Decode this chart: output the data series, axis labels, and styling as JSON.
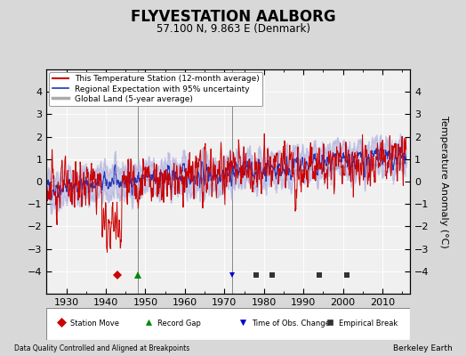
{
  "title": "FLYVESTATION AALBORG",
  "subtitle": "57.100 N, 9.863 E (Denmark)",
  "ylabel": "Temperature Anomaly (°C)",
  "footer_left": "Data Quality Controlled and Aligned at Breakpoints",
  "footer_right": "Berkeley Earth",
  "xlim": [
    1925,
    2017
  ],
  "ylim": [
    -5,
    5
  ],
  "yticks": [
    -4,
    -3,
    -2,
    -1,
    0,
    1,
    2,
    3,
    4
  ],
  "xticks": [
    1930,
    1940,
    1950,
    1960,
    1970,
    1980,
    1990,
    2000,
    2010
  ],
  "bg_color": "#d8d8d8",
  "plot_bg_color": "#f0f0f0",
  "red_color": "#cc0000",
  "blue_color": "#2233bb",
  "blue_fill_color": "#aaaadd",
  "gray_color": "#aaaaaa",
  "legend_items": [
    {
      "label": "This Temperature Station (12-month average)",
      "color": "#cc0000",
      "lw": 1.5
    },
    {
      "label": "Regional Expectation with 95% uncertainty",
      "color": "#2233bb",
      "lw": 1.2
    },
    {
      "label": "Global Land (5-year average)",
      "color": "#aaaaaa",
      "lw": 2.5
    }
  ],
  "markers": {
    "station_move": {
      "years": [
        1943
      ],
      "color": "#cc0000",
      "marker": "D",
      "label": "Station Move"
    },
    "record_gap": {
      "years": [
        1948
      ],
      "color": "#008800",
      "marker": "^",
      "label": "Record Gap"
    },
    "obs_change": {
      "years": [
        1972
      ],
      "color": "#0000cc",
      "marker": "v",
      "label": "Time of Obs. Change"
    },
    "empirical_break": {
      "years": [
        1978,
        1982,
        1994,
        2001
      ],
      "color": "#333333",
      "marker": "s",
      "label": "Empirical Break"
    }
  },
  "vlines": [
    1948,
    1972
  ],
  "seed": 42
}
